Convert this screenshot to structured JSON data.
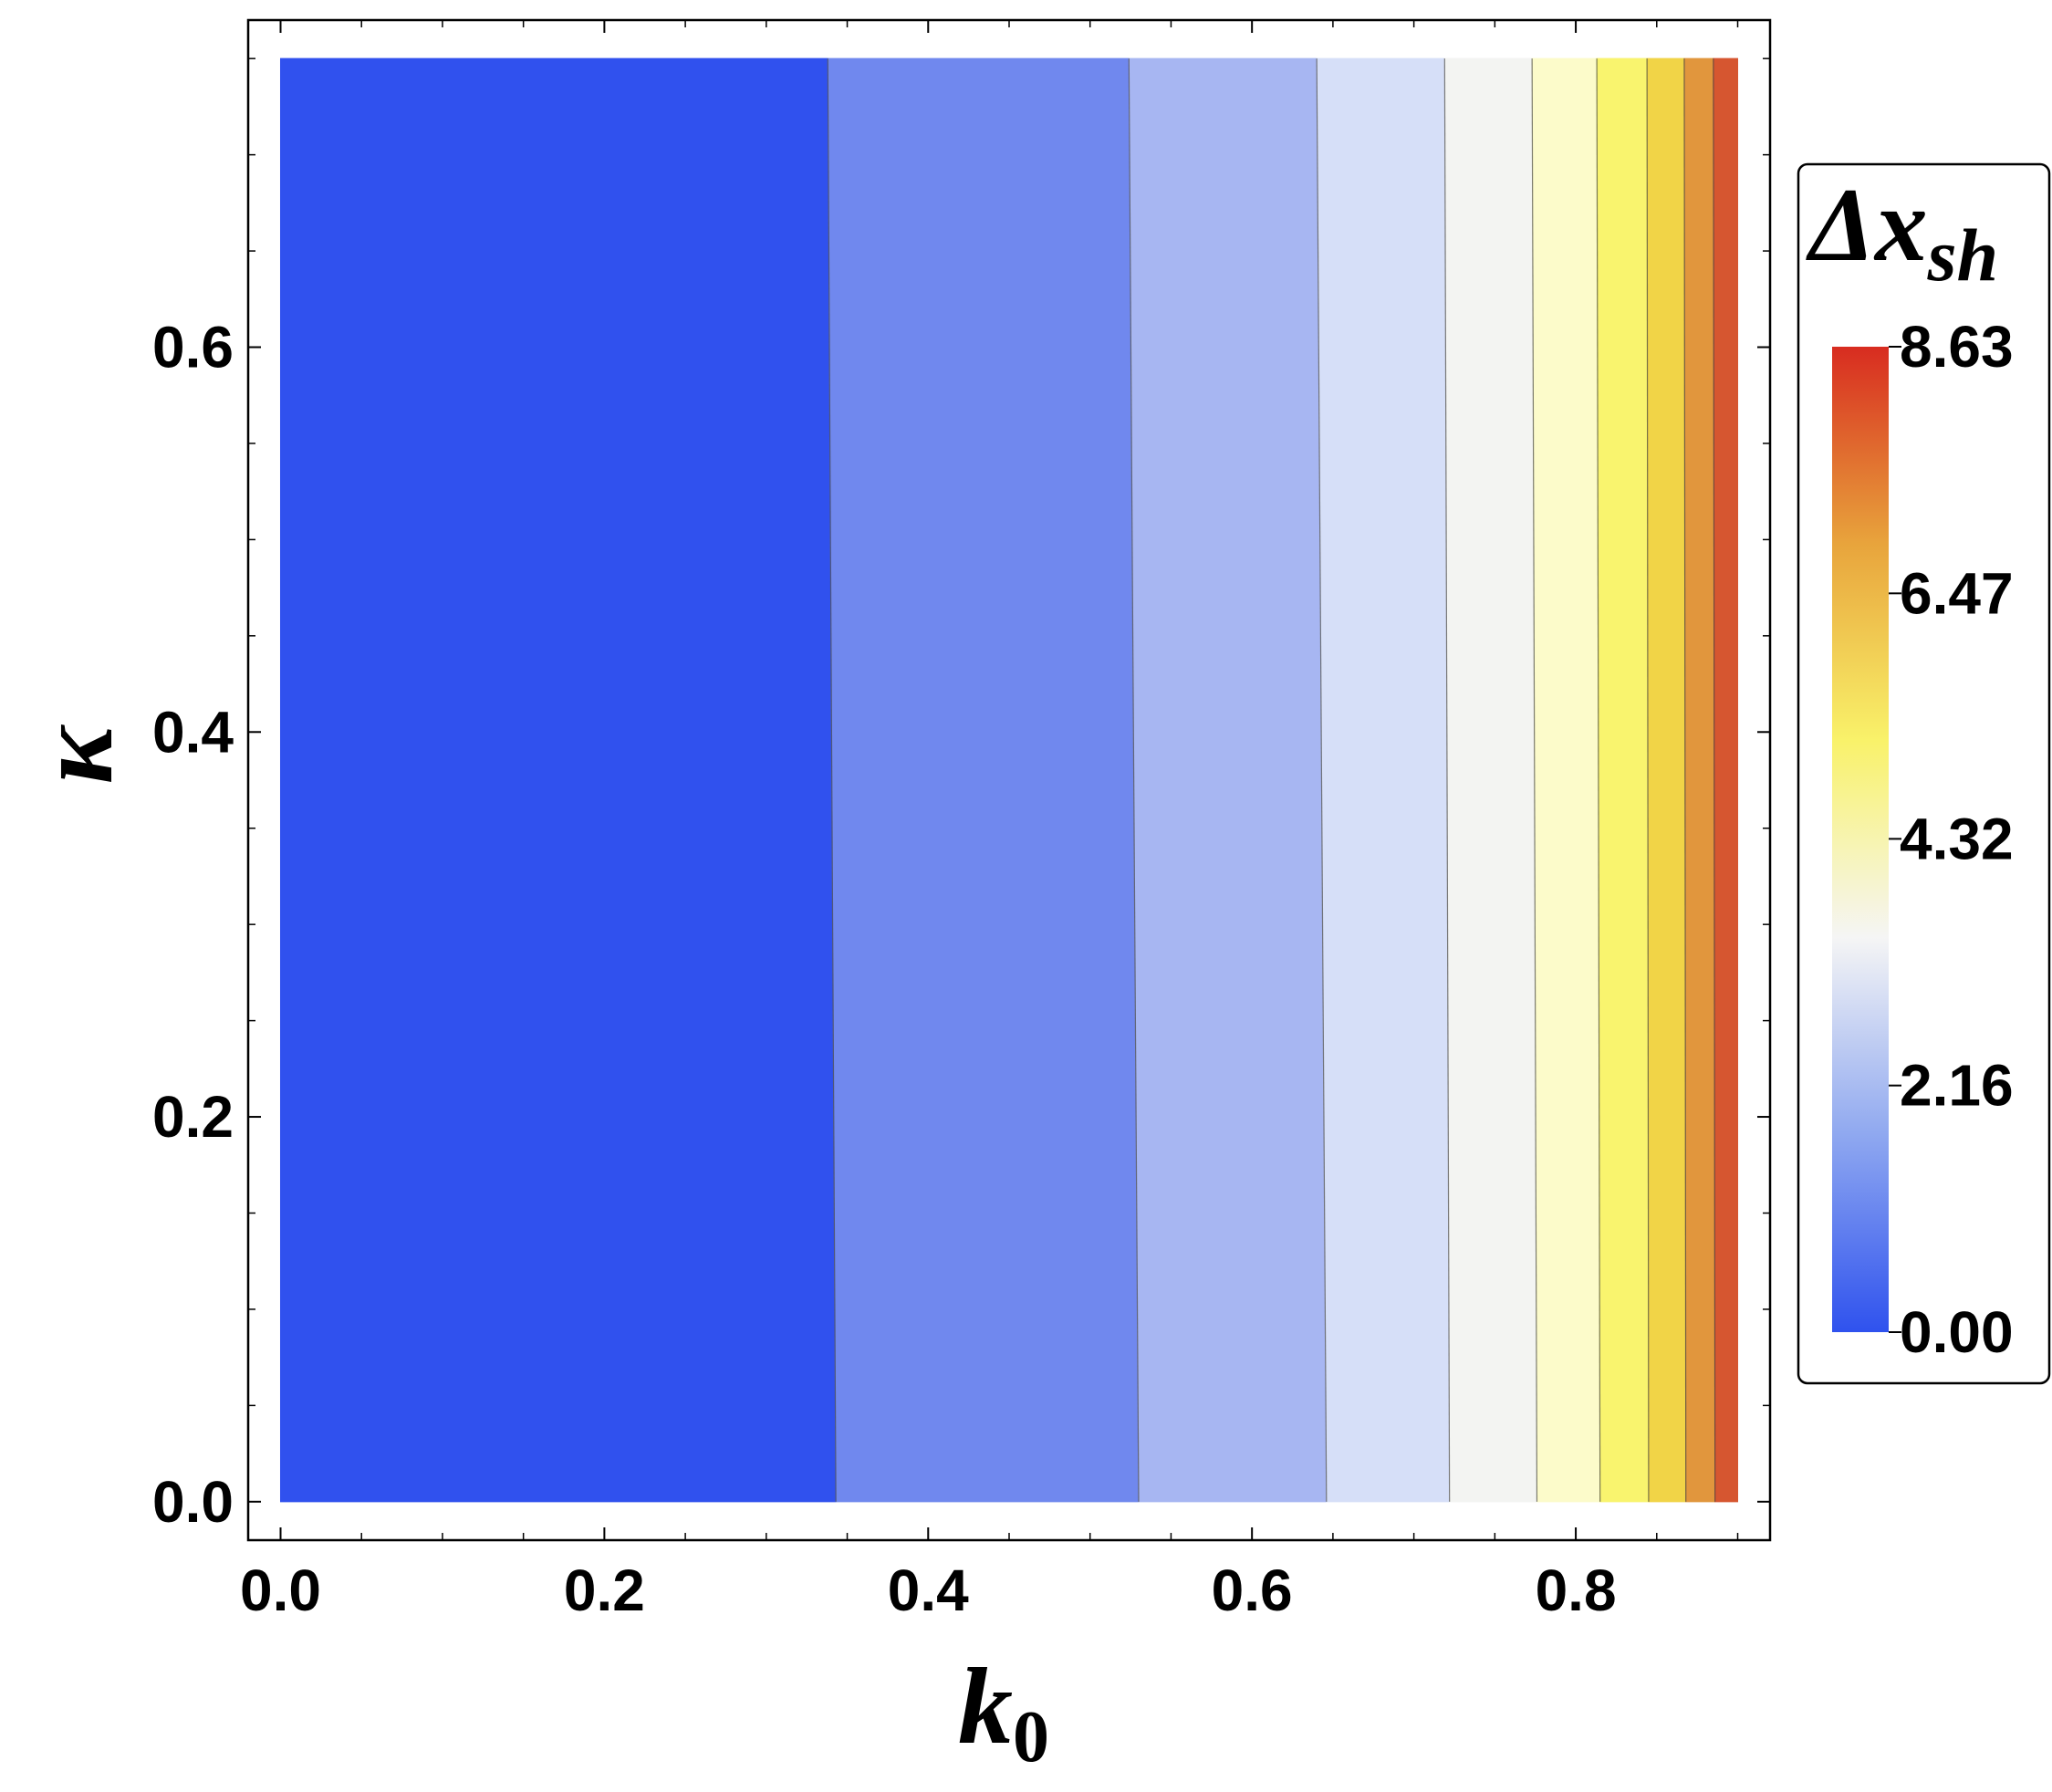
{
  "chart_data": {
    "type": "contour",
    "xlabel": "k",
    "xlabel_subscript": "0",
    "ylabel": "κ",
    "x_ticks": [
      "0.0",
      "0.2",
      "0.4",
      "0.6",
      "0.8"
    ],
    "x_tick_values": [
      0.0,
      0.2,
      0.4,
      0.6,
      0.8
    ],
    "y_ticks": [
      "0.0",
      "0.2",
      "0.4",
      "0.6"
    ],
    "y_tick_values": [
      0.0,
      0.2,
      0.4,
      0.6
    ],
    "xlim": [
      -0.02,
      0.92
    ],
    "ylim": [
      -0.02,
      0.77
    ],
    "data_extent": {
      "x": [
        0.0,
        0.9
      ],
      "y": [
        0.0,
        0.75
      ]
    },
    "grid": false,
    "legend": {
      "title": "Δx",
      "title_subscript": "sh",
      "placement": "right",
      "ticks": [
        "0.00",
        "2.16",
        "4.32",
        "6.47",
        "8.63"
      ],
      "tick_values": [
        0.0,
        2.16,
        4.32,
        6.47,
        8.63
      ],
      "gradient": [
        "#2f52ee",
        "#8fa8f0",
        "#f5f5f5",
        "#f9f26a",
        "#e8a43c",
        "#d82c20"
      ]
    },
    "bands": [
      {
        "x_start": 0.0,
        "x_end_bottom": 0.343,
        "x_end_top": 0.338,
        "color": "#3051ee"
      },
      {
        "x_start": 0.343,
        "x_end_bottom": 0.53,
        "x_end_top": 0.524,
        "color": "#7088ee"
      },
      {
        "x_start": 0.53,
        "x_end_bottom": 0.646,
        "x_end_top": 0.64,
        "color": "#a7b6f2"
      },
      {
        "x_start": 0.646,
        "x_end_bottom": 0.722,
        "x_end_top": 0.719,
        "color": "#d6dff8"
      },
      {
        "x_start": 0.722,
        "x_end_bottom": 0.776,
        "x_end_top": 0.773,
        "color": "#f3f4f2"
      },
      {
        "x_start": 0.776,
        "x_end_bottom": 0.815,
        "x_end_top": 0.813,
        "color": "#fcfbca"
      },
      {
        "x_start": 0.815,
        "x_end_bottom": 0.845,
        "x_end_top": 0.844,
        "color": "#f9f46e"
      },
      {
        "x_start": 0.845,
        "x_end_bottom": 0.868,
        "x_end_top": 0.867,
        "color": "#f1d447"
      },
      {
        "x_start": 0.868,
        "x_end_bottom": 0.886,
        "x_end_top": 0.885,
        "color": "#e1963d"
      },
      {
        "x_start": 0.886,
        "x_end_bottom": 0.9,
        "x_end_top": 0.9,
        "color": "#d65630"
      }
    ]
  }
}
